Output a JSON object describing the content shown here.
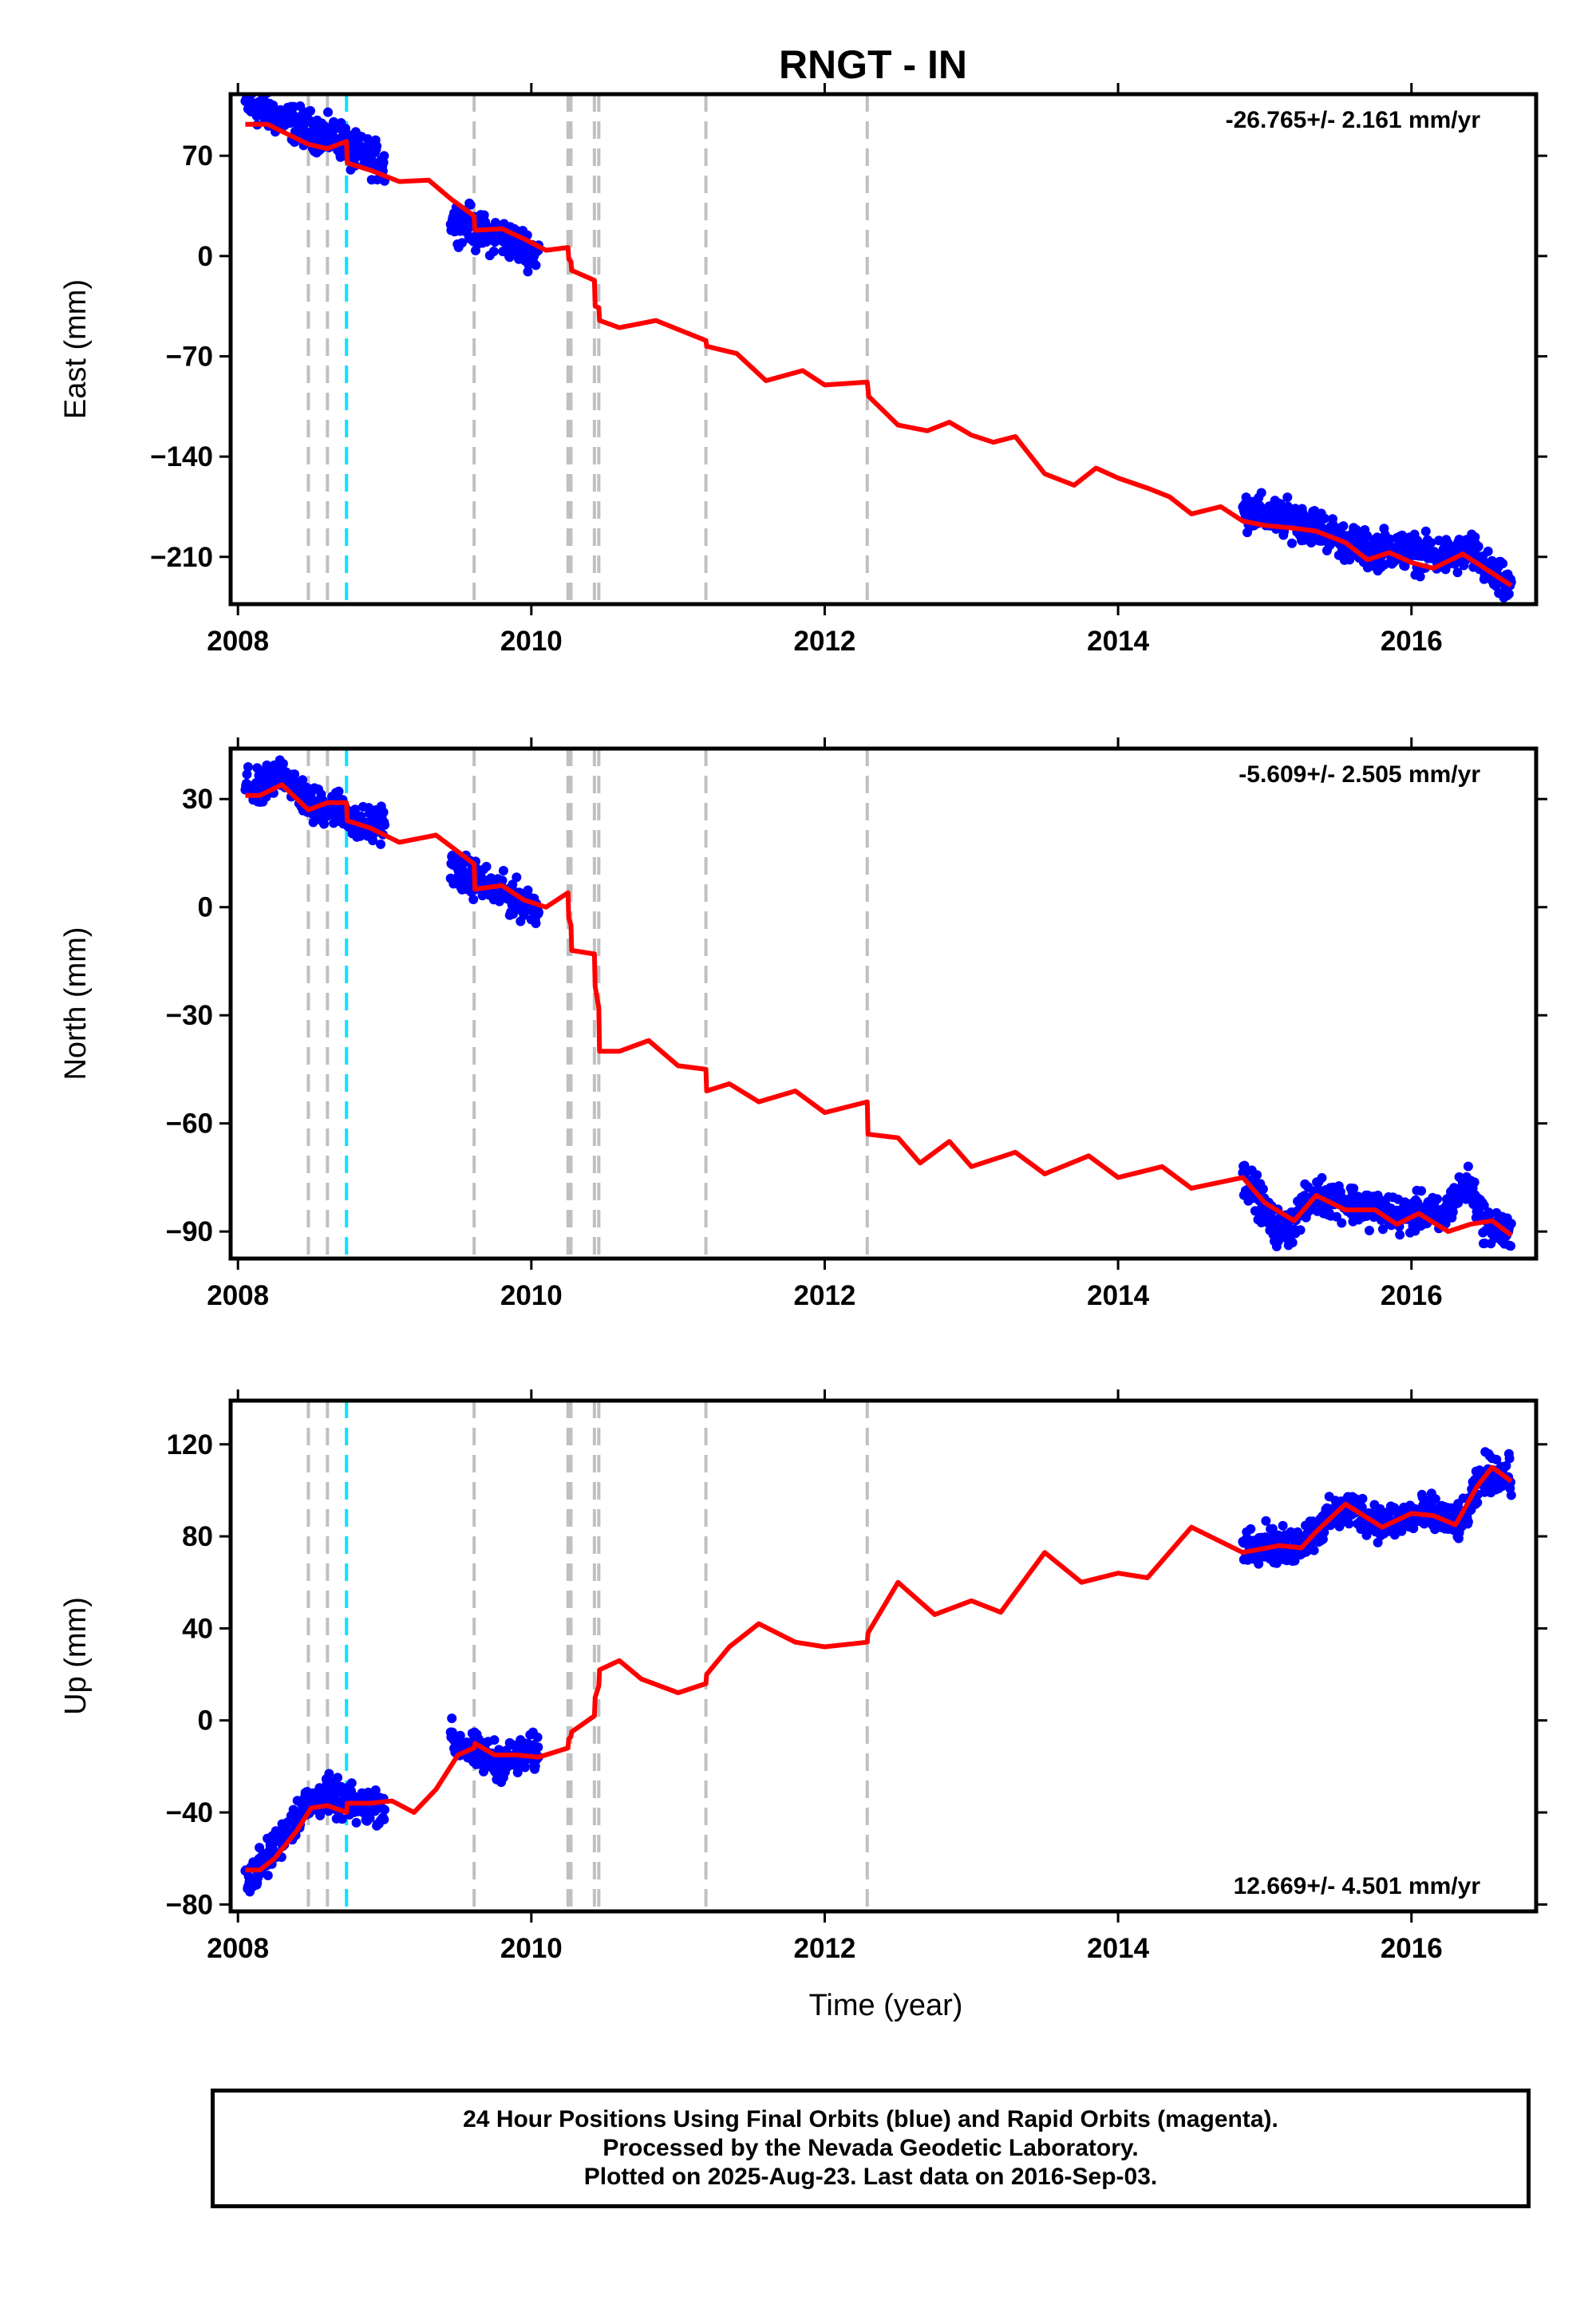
{
  "title": "RNGT - IN",
  "colors": {
    "final_orbits": "#0000ff",
    "model": "#ff0000",
    "event_line": "#c0c0c0",
    "highlight_event": "#00e5ff"
  },
  "footer": {
    "line1": "24 Hour Positions Using Final Orbits (blue) and Rapid Orbits (magenta).",
    "line2": "Processed by the Nevada Geodetic Laboratory.",
    "line3": "Plotted on 2025-Aug-23. Last data on 2016-Sep-03."
  },
  "chart_data": [
    {
      "type": "scatter",
      "component": "East",
      "ylabel": "East (mm)",
      "xlabel": "",
      "xlim": [
        2007.95,
        2016.85
      ],
      "ylim": [
        -243,
        113
      ],
      "yticks": [
        70,
        0,
        -70,
        -140,
        -210
      ],
      "xticks": [
        2008,
        2010,
        2012,
        2014,
        2016
      ],
      "rate_text": "-26.765+/- 2.161 mm/yr",
      "rate_position": "top-right",
      "event_lines": [
        2008.48,
        2008.61,
        2009.61,
        2010.25,
        2010.27,
        2010.43,
        2010.46,
        2011.19,
        2012.29
      ],
      "highlight_event": 2008.74,
      "data_segments": [
        {
          "x": [
            2008.05,
            2008.2,
            2008.4,
            2008.6,
            2008.74,
            2008.75,
            2008.9,
            2009.0
          ],
          "y": [
            107,
            100,
            92,
            84,
            80,
            73,
            69,
            63
          ]
        },
        {
          "x": [
            2009.45,
            2009.6,
            2009.61,
            2009.8,
            2010.05
          ],
          "y": [
            25,
            22,
            17,
            13,
            2
          ]
        },
        {
          "x": [
            2014.85,
            2015.1,
            2015.3,
            2015.5,
            2015.7,
            2015.85,
            2016.05,
            2016.3,
            2016.4,
            2016.55,
            2016.68
          ],
          "y": [
            -177,
            -183,
            -186,
            -197,
            -206,
            -203,
            -208,
            -210,
            -205,
            -223,
            -233
          ]
        }
      ],
      "model": {
        "x": [
          2008.05,
          2008.2,
          2008.4,
          2008.48,
          2008.61,
          2008.74,
          2008.745,
          2008.9,
          2009.1,
          2009.3,
          2009.45,
          2009.61,
          2009.615,
          2009.8,
          2009.95,
          2010.1,
          2010.25,
          2010.255,
          2010.27,
          2010.275,
          2010.43,
          2010.435,
          2010.46,
          2010.465,
          2010.6,
          2010.85,
          2011.19,
          2011.195,
          2011.4,
          2011.6,
          2011.85,
          2012.0,
          2012.29,
          2012.3,
          2012.5,
          2012.7,
          2012.85,
          2013.0,
          2013.15,
          2013.3,
          2013.5,
          2013.7,
          2013.85,
          2014.0,
          2014.2,
          2014.35,
          2014.5,
          2014.7,
          2014.85,
          2015.0,
          2015.2,
          2015.35,
          2015.55,
          2015.7,
          2015.85,
          2016.0,
          2016.15,
          2016.35,
          2016.5,
          2016.68
        ],
        "y": [
          92,
          92,
          82,
          78,
          75,
          80,
          65,
          60,
          52,
          53,
          40,
          28,
          18,
          19,
          12,
          4,
          6,
          -2,
          -4,
          -10,
          -17,
          -35,
          -36,
          -45,
          -50,
          -45,
          -59,
          -63,
          -68,
          -87,
          -80,
          -90,
          -88,
          -98,
          -118,
          -122,
          -116,
          -125,
          -130,
          -126,
          -152,
          -160,
          -148,
          -155,
          -162,
          -168,
          -180,
          -175,
          -185,
          -188,
          -190,
          -192,
          -200,
          -212,
          -207,
          -214,
          -218,
          -208,
          -218,
          -230
        ]
      }
    },
    {
      "type": "scatter",
      "component": "North",
      "ylabel": "North (mm)",
      "xlabel": "",
      "xlim": [
        2007.95,
        2016.85
      ],
      "ylim": [
        -97.5,
        44
      ],
      "yticks": [
        30,
        0,
        -30,
        -60,
        -90
      ],
      "xticks": [
        2008,
        2010,
        2012,
        2014,
        2016
      ],
      "rate_text": "-5.609+/- 2.505 mm/yr",
      "rate_position": "top-right",
      "event_lines": [
        2008.48,
        2008.61,
        2009.61,
        2010.25,
        2010.27,
        2010.43,
        2010.46,
        2011.19,
        2012.29
      ],
      "highlight_event": 2008.74,
      "data_segments": [
        {
          "x": [
            2008.05,
            2008.15,
            2008.3,
            2008.5,
            2008.65,
            2008.74,
            2008.8,
            2009.0
          ],
          "y": [
            34,
            32,
            38,
            28,
            28,
            27,
            22,
            24
          ]
        },
        {
          "x": [
            2009.45,
            2009.55,
            2009.61,
            2009.7,
            2009.85,
            2010.05
          ],
          "y": [
            11,
            9,
            8,
            6,
            3,
            0
          ]
        },
        {
          "x": [
            2014.85,
            2014.95,
            2015.05,
            2015.15,
            2015.25,
            2015.35,
            2015.5,
            2015.65,
            2015.8,
            2015.95,
            2016.1,
            2016.2,
            2016.3,
            2016.4,
            2016.5,
            2016.6,
            2016.68
          ],
          "y": [
            -75,
            -80,
            -88,
            -90,
            -84,
            -80,
            -81,
            -83,
            -84,
            -86,
            -84,
            -87,
            -80,
            -77,
            -88,
            -89,
            -92
          ]
        }
      ],
      "model": {
        "x": [
          2008.05,
          2008.15,
          2008.3,
          2008.48,
          2008.61,
          2008.74,
          2008.745,
          2008.9,
          2009.1,
          2009.35,
          2009.61,
          2009.615,
          2009.8,
          2009.95,
          2010.1,
          2010.25,
          2010.255,
          2010.27,
          2010.275,
          2010.43,
          2010.435,
          2010.46,
          2010.465,
          2010.6,
          2010.8,
          2011.0,
          2011.19,
          2011.195,
          2011.35,
          2011.55,
          2011.8,
          2012.0,
          2012.29,
          2012.295,
          2012.5,
          2012.65,
          2012.85,
          2013.0,
          2013.3,
          2013.5,
          2013.8,
          2014.0,
          2014.3,
          2014.5,
          2014.85,
          2015.0,
          2015.2,
          2015.35,
          2015.55,
          2015.75,
          2015.9,
          2016.05,
          2016.25,
          2016.4,
          2016.55,
          2016.68
        ],
        "y": [
          31,
          31,
          34,
          27,
          29,
          29,
          24,
          22,
          18,
          20,
          12,
          5,
          6,
          2,
          0,
          4,
          -3,
          -5,
          -12,
          -13,
          -22,
          -28,
          -40,
          -40,
          -37,
          -44,
          -45,
          -51,
          -49,
          -54,
          -51,
          -57,
          -54,
          -63,
          -64,
          -71,
          -65,
          -72,
          -68,
          -74,
          -69,
          -75,
          -72,
          -78,
          -75,
          -82,
          -87,
          -80,
          -84,
          -84,
          -88,
          -85,
          -90,
          -88,
          -87,
          -91
        ]
      }
    },
    {
      "type": "scatter",
      "component": "Up",
      "ylabel": "Up (mm)",
      "xlabel": "Time (year)",
      "xlim": [
        2007.95,
        2016.85
      ],
      "ylim": [
        -83,
        139
      ],
      "yticks": [
        120,
        80,
        40,
        0,
        -40,
        -80
      ],
      "xticks": [
        2008,
        2010,
        2012,
        2014,
        2016
      ],
      "rate_text": "12.669+/- 4.501 mm/yr",
      "rate_position": "bottom-right",
      "event_lines": [
        2008.48,
        2008.61,
        2009.61,
        2010.25,
        2010.27,
        2010.43,
        2010.46,
        2011.19,
        2012.29
      ],
      "highlight_event": 2008.74,
      "data_segments": [
        {
          "x": [
            2008.05,
            2008.15,
            2008.25,
            2008.35,
            2008.45,
            2008.6,
            2008.74,
            2008.85,
            2009.0
          ],
          "y": [
            -68,
            -64,
            -56,
            -46,
            -38,
            -32,
            -36,
            -38,
            -36
          ]
        },
        {
          "x": [
            2009.45,
            2009.55,
            2009.65,
            2009.8,
            2009.95,
            2010.05
          ],
          "y": [
            -8,
            -12,
            -15,
            -18,
            -15,
            -14
          ]
        },
        {
          "x": [
            2014.85,
            2015.0,
            2015.15,
            2015.3,
            2015.45,
            2015.6,
            2015.8,
            2015.95,
            2016.1,
            2016.2,
            2016.35,
            2016.5,
            2016.68
          ],
          "y": [
            76,
            78,
            74,
            80,
            88,
            92,
            86,
            88,
            90,
            88,
            86,
            108,
            106
          ]
        }
      ],
      "model": {
        "x": [
          2008.05,
          2008.15,
          2008.25,
          2008.4,
          2008.5,
          2008.61,
          2008.74,
          2008.745,
          2008.9,
          2009.05,
          2009.2,
          2009.35,
          2009.5,
          2009.61,
          2009.615,
          2009.75,
          2009.9,
          2010.05,
          2010.25,
          2010.255,
          2010.27,
          2010.275,
          2010.43,
          2010.435,
          2010.46,
          2010.465,
          2010.6,
          2010.75,
          2011.0,
          2011.19,
          2011.195,
          2011.35,
          2011.55,
          2011.8,
          2012.0,
          2012.29,
          2012.295,
          2012.5,
          2012.75,
          2013.0,
          2013.2,
          2013.5,
          2013.75,
          2014.0,
          2014.2,
          2014.5,
          2014.85,
          2015.1,
          2015.25,
          2015.35,
          2015.55,
          2015.8,
          2016.0,
          2016.15,
          2016.3,
          2016.45,
          2016.55,
          2016.68
        ],
        "y": [
          -65,
          -65,
          -60,
          -48,
          -38,
          -37,
          -40,
          -36,
          -36,
          -35,
          -40,
          -30,
          -15,
          -12,
          -10,
          -15,
          -15,
          -16,
          -12,
          -8,
          -7,
          -5,
          2,
          10,
          15,
          22,
          26,
          18,
          12,
          16,
          20,
          32,
          42,
          34,
          32,
          34,
          38,
          60,
          46,
          52,
          47,
          73,
          60,
          64,
          62,
          84,
          73,
          76,
          75,
          82,
          94,
          84,
          90,
          89,
          85,
          102,
          110,
          104
        ]
      }
    }
  ]
}
